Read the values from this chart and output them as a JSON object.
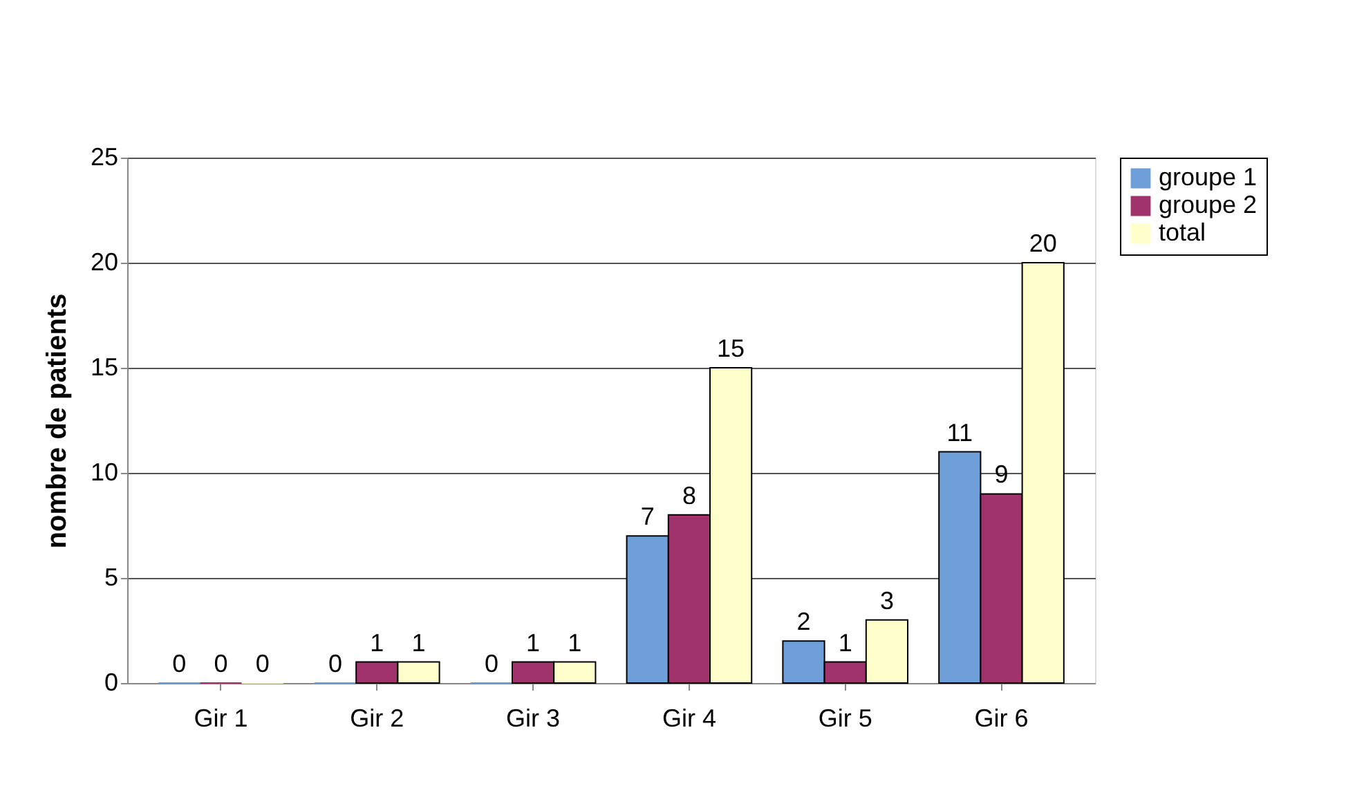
{
  "chart_data": {
    "type": "bar",
    "ylabel": "nombre de patients",
    "categories": [
      "Gir 1",
      "Gir 2",
      "Gir 3",
      "Gir 4",
      "Gir 5",
      "Gir 6"
    ],
    "series": [
      {
        "name": "groupe 1",
        "color": "#6f9fd8",
        "values": [
          0,
          0,
          0,
          7,
          2,
          11
        ]
      },
      {
        "name": "groupe 2",
        "color": "#a0336c",
        "values": [
          0,
          1,
          1,
          8,
          1,
          9
        ]
      },
      {
        "name": "total",
        "color": "#ffffcc",
        "values": [
          0,
          1,
          1,
          15,
          3,
          20
        ]
      }
    ],
    "ylim": [
      0,
      25
    ],
    "yticks": [
      0,
      5,
      10,
      15,
      20,
      25
    ],
    "grid": "y",
    "legend": "right",
    "data_labels": true
  }
}
